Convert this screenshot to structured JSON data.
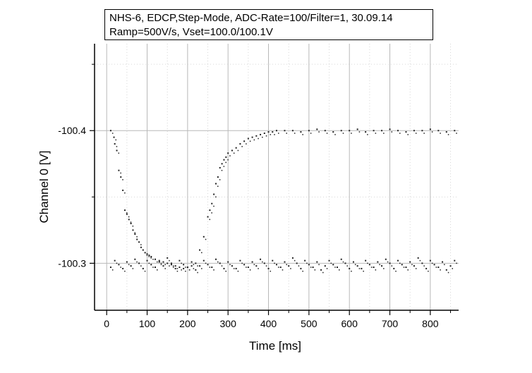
{
  "chart_data": {
    "type": "scatter",
    "title_lines": [
      "NHS-6, EDCP,Step-Mode, ADC-Rate=100/Filter=1, 30.09.14",
      "Ramp=500V/s, Vset=100.0/100.1V"
    ],
    "xlabel": "Time [ms]",
    "ylabel": "Channel 0 [V]",
    "xlim": [
      -30,
      870
    ],
    "ylim": [
      -100.2646,
      -100.4655
    ],
    "x_ticks": [
      0,
      100,
      200,
      300,
      400,
      500,
      600,
      700,
      800
    ],
    "x_tick_labels": [
      "0",
      "100",
      "200",
      "300",
      "400",
      "500",
      "600",
      "700",
      "800"
    ],
    "y_ticks": [
      -100.4,
      -100.3
    ],
    "y_tick_labels": [
      "-100.4",
      "-100.3"
    ],
    "grid": true,
    "legend": "none",
    "marker_color": "#222222",
    "series": [
      {
        "x": [
          10,
          18,
          20,
          25,
          30,
          35,
          40,
          45,
          50,
          55,
          60,
          65,
          70,
          75,
          80,
          85,
          90,
          95,
          100,
          105,
          110,
          120,
          130,
          140,
          150,
          160,
          170,
          180,
          190,
          200,
          210,
          220,
          230,
          240,
          250,
          255,
          260,
          265,
          270,
          275,
          280,
          285,
          290,
          295,
          300,
          310,
          320,
          330,
          340,
          350,
          360,
          370,
          380,
          390,
          400,
          410,
          420,
          440,
          460,
          480,
          500,
          520,
          540,
          560,
          580,
          600,
          620,
          640,
          660,
          680,
          700,
          720,
          740,
          760,
          780,
          800,
          820,
          840,
          860
        ],
        "y": [
          -100.4,
          -100.395,
          -100.39,
          -100.385,
          -100.37,
          -100.365,
          -100.355,
          -100.34,
          -100.337,
          -100.333,
          -100.33,
          -100.325,
          -100.322,
          -100.318,
          -100.316,
          -100.312,
          -100.31,
          -100.308,
          -100.307,
          -100.306,
          -100.305,
          -100.303,
          -100.302,
          -100.301,
          -100.3,
          -100.299,
          -100.298,
          -100.297,
          -100.296,
          -100.297,
          -100.298,
          -100.3,
          -100.31,
          -100.32,
          -100.335,
          -100.34,
          -100.345,
          -100.352,
          -100.36,
          -100.365,
          -100.372,
          -100.375,
          -100.378,
          -100.38,
          -100.383,
          -100.385,
          -100.387,
          -100.39,
          -100.392,
          -100.394,
          -100.395,
          -100.396,
          -100.397,
          -100.398,
          -100.399,
          -100.399,
          -100.4,
          -100.4,
          -100.4,
          -100.399,
          -100.4,
          -100.401,
          -100.4,
          -100.399,
          -100.4,
          -100.4,
          -100.401,
          -100.399,
          -100.4,
          -100.4,
          -100.401,
          -100.4,
          -100.399,
          -100.4,
          -100.4,
          -100.401,
          -100.4,
          -100.399,
          -100.4
        ]
      },
      {
        "x": [
          10,
          20,
          30,
          40,
          50,
          60,
          70,
          80,
          90,
          100,
          110,
          120,
          130,
          140,
          150,
          160,
          170,
          180,
          190,
          200,
          210,
          220,
          230,
          240,
          250,
          260,
          270,
          280,
          290,
          300,
          310,
          320,
          330,
          340,
          350,
          360,
          370,
          380,
          390,
          400,
          410,
          420,
          430,
          440,
          450,
          460,
          470,
          480,
          490,
          500,
          510,
          520,
          530,
          540,
          550,
          560,
          570,
          580,
          590,
          600,
          610,
          620,
          630,
          640,
          650,
          660,
          670,
          680,
          690,
          700,
          710,
          720,
          730,
          740,
          750,
          760,
          770,
          780,
          790,
          800,
          810,
          820,
          830,
          840,
          850,
          860
        ],
        "y": [
          -100.297,
          -100.302,
          -100.299,
          -100.296,
          -100.301,
          -100.298,
          -100.303,
          -100.3,
          -100.296,
          -100.302,
          -100.299,
          -100.297,
          -100.301,
          -100.298,
          -100.304,
          -100.3,
          -100.296,
          -100.302,
          -100.299,
          -100.297,
          -100.301,
          -100.295,
          -100.298,
          -100.302,
          -100.299,
          -100.297,
          -100.303,
          -100.3,
          -100.296,
          -100.301,
          -100.298,
          -100.296,
          -100.302,
          -100.299,
          -100.297,
          -100.301,
          -100.298,
          -100.303,
          -100.3,
          -100.296,
          -100.302,
          -100.299,
          -100.297,
          -100.301,
          -100.298,
          -100.304,
          -100.3,
          -100.296,
          -100.302,
          -100.299,
          -100.297,
          -100.301,
          -100.295,
          -100.298,
          -100.302,
          -100.299,
          -100.297,
          -100.303,
          -100.3,
          -100.296,
          -100.301,
          -100.298,
          -100.296,
          -100.302,
          -100.299,
          -100.297,
          -100.301,
          -100.298,
          -100.303,
          -100.3,
          -100.296,
          -100.302,
          -100.299,
          -100.297,
          -100.301,
          -100.298,
          -100.304,
          -100.3,
          -100.296,
          -100.302,
          -100.299,
          -100.297,
          -100.301,
          -100.295,
          -100.298,
          -100.302
        ]
      }
    ]
  }
}
